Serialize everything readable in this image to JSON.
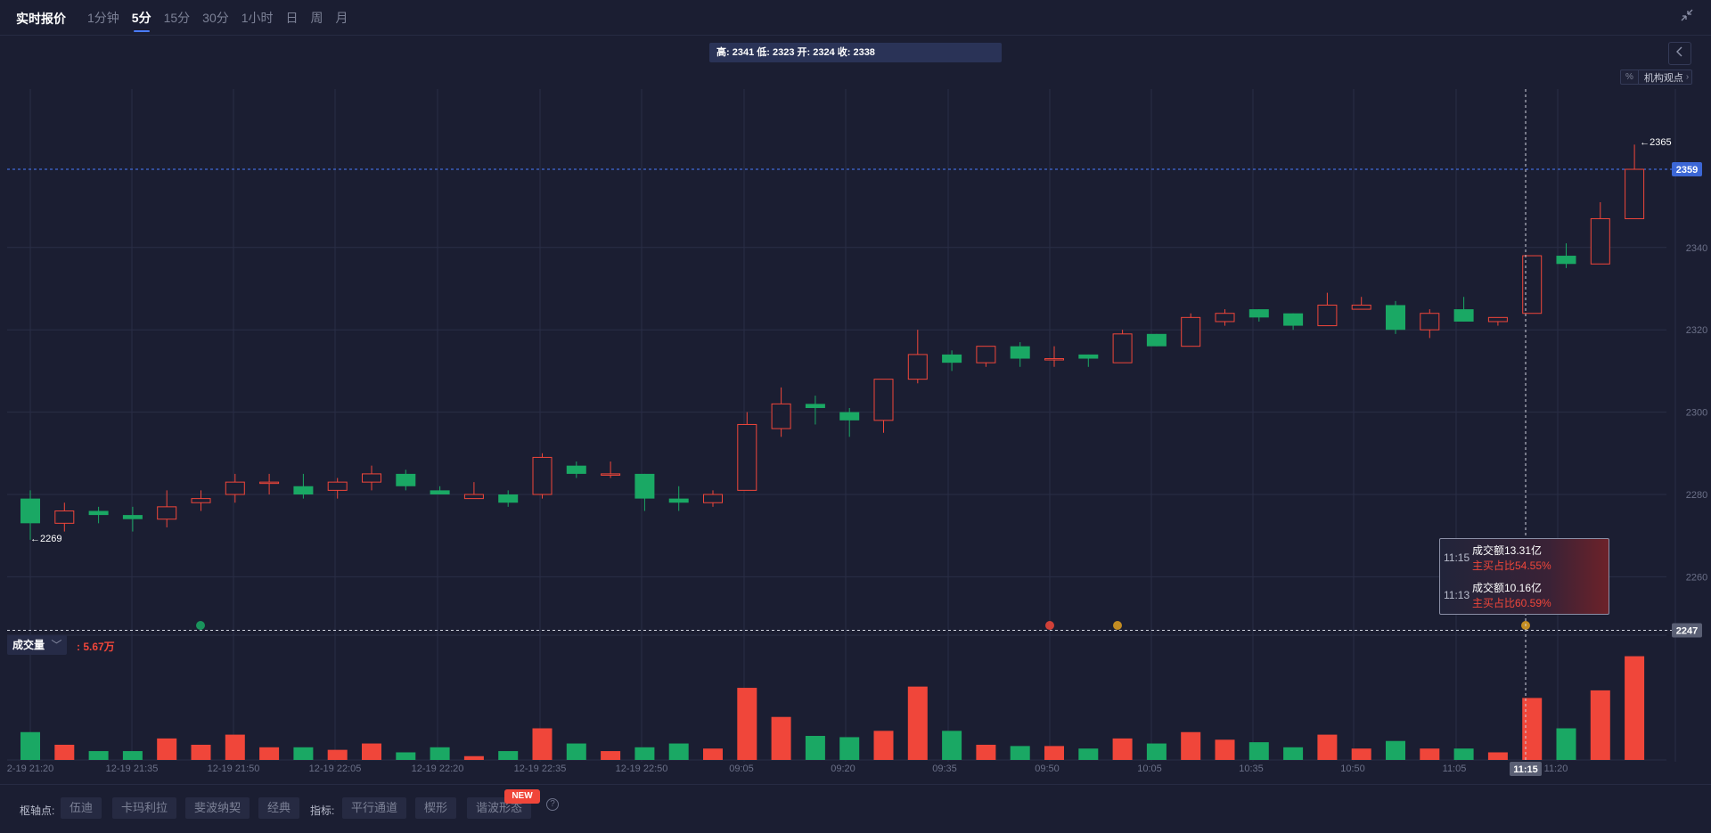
{
  "header": {
    "title": "实时报价",
    "periods": [
      "1分钟",
      "5分",
      "15分",
      "30分",
      "1小时",
      "日",
      "周",
      "月"
    ],
    "active_period": "5分"
  },
  "ohlc_info": "高: 2341 低: 2323 开: 2324 收: 2338",
  "inst_view": {
    "pct": "%",
    "label": "机构观点"
  },
  "price_axis": {
    "ticks": [
      "2340",
      "2320",
      "2300",
      "2280",
      "2260"
    ],
    "current_price": "2359",
    "crosshair_price": "2247",
    "max_label": "2365",
    "min_label": "2269"
  },
  "tooltip": {
    "rows": [
      {
        "time": "11:15",
        "amount": "成交额13.31亿",
        "ratio": "主买占比54.55%"
      },
      {
        "time": "11:13",
        "amount": "成交额10.16亿",
        "ratio": "主买占比60.59%"
      }
    ]
  },
  "volume": {
    "label": "成交量",
    "value": ": 5.67万"
  },
  "time_axis": {
    "labels": [
      "2-19 21:20",
      "12-19 21:35",
      "12-19 21:50",
      "12-19 22:05",
      "12-19 22:20",
      "12-19 22:35",
      "12-19 22:50",
      "09:05",
      "09:20",
      "09:35",
      "09:50",
      "10:05",
      "10:35",
      "10:50",
      "11:05",
      "11:20"
    ],
    "crosshair_time": "11:15"
  },
  "bottom_bar": {
    "pivot_label": "枢轴点:",
    "pivot_buttons": [
      "伍迪",
      "卡玛利拉",
      "斐波纳契",
      "经典"
    ],
    "indicator_label": "指标:",
    "indicator_buttons": [
      "平行通道",
      "楔形",
      "谐波形态"
    ],
    "new_badge": "NEW",
    "help": "?"
  },
  "colors": {
    "up": "#f0463a",
    "down": "#1aa864",
    "background": "#1b1e32",
    "accent": "#4a7cff"
  },
  "chart_data": {
    "type": "candlestick",
    "y_ticks": [
      2340,
      2320,
      2300,
      2280,
      2260
    ],
    "candles": [
      {
        "o": 2279,
        "h": 2281,
        "l": 2269,
        "c": 2273
      },
      {
        "o": 2273,
        "h": 2278,
        "l": 2271,
        "c": 2276
      },
      {
        "o": 2276,
        "h": 2277,
        "l": 2273,
        "c": 2275
      },
      {
        "o": 2275,
        "h": 2277,
        "l": 2271,
        "c": 2274
      },
      {
        "o": 2274,
        "h": 2281,
        "l": 2272,
        "c": 2277
      },
      {
        "o": 2278,
        "h": 2281,
        "l": 2276,
        "c": 2279
      },
      {
        "o": 2280,
        "h": 2285,
        "l": 2278,
        "c": 2283
      },
      {
        "o": 2283,
        "h": 2285,
        "l": 2280,
        "c": 2283
      },
      {
        "o": 2282,
        "h": 2285,
        "l": 2279,
        "c": 2280
      },
      {
        "o": 2281,
        "h": 2284,
        "l": 2279,
        "c": 2283
      },
      {
        "o": 2283,
        "h": 2287,
        "l": 2281,
        "c": 2285
      },
      {
        "o": 2285,
        "h": 2286,
        "l": 2281,
        "c": 2282
      },
      {
        "o": 2281,
        "h": 2282,
        "l": 2280,
        "c": 2280
      },
      {
        "o": 2279,
        "h": 2283,
        "l": 2279,
        "c": 2280
      },
      {
        "o": 2280,
        "h": 2281,
        "l": 2277,
        "c": 2278
      },
      {
        "o": 2280,
        "h": 2290,
        "l": 2279,
        "c": 2289
      },
      {
        "o": 2287,
        "h": 2288,
        "l": 2284,
        "c": 2285
      },
      {
        "o": 2285,
        "h": 2288,
        "l": 2284,
        "c": 2285
      },
      {
        "o": 2285,
        "h": 2285,
        "l": 2276,
        "c": 2279
      },
      {
        "o": 2279,
        "h": 2282,
        "l": 2276,
        "c": 2278
      },
      {
        "o": 2278,
        "h": 2281,
        "l": 2277,
        "c": 2280
      },
      {
        "o": 2281,
        "h": 2300,
        "l": 2281,
        "c": 2297
      },
      {
        "o": 2296,
        "h": 2306,
        "l": 2294,
        "c": 2302
      },
      {
        "o": 2302,
        "h": 2304,
        "l": 2297,
        "c": 2301
      },
      {
        "o": 2300,
        "h": 2301,
        "l": 2294,
        "c": 2298
      },
      {
        "o": 2298,
        "h": 2308,
        "l": 2295,
        "c": 2308
      },
      {
        "o": 2308,
        "h": 2320,
        "l": 2307,
        "c": 2314
      },
      {
        "o": 2314,
        "h": 2315,
        "l": 2310,
        "c": 2312
      },
      {
        "o": 2312,
        "h": 2316,
        "l": 2311,
        "c": 2316
      },
      {
        "o": 2316,
        "h": 2317,
        "l": 2311,
        "c": 2313
      },
      {
        "o": 2313,
        "h": 2316,
        "l": 2311,
        "c": 2313
      },
      {
        "o": 2314,
        "h": 2314,
        "l": 2311,
        "c": 2313
      },
      {
        "o": 2312,
        "h": 2320,
        "l": 2312,
        "c": 2319
      },
      {
        "o": 2319,
        "h": 2319,
        "l": 2316,
        "c": 2316
      },
      {
        "o": 2316,
        "h": 2324,
        "l": 2316,
        "c": 2323
      },
      {
        "o": 2322,
        "h": 2325,
        "l": 2321,
        "c": 2324
      },
      {
        "o": 2325,
        "h": 2325,
        "l": 2322,
        "c": 2323
      },
      {
        "o": 2324,
        "h": 2324,
        "l": 2320,
        "c": 2321
      },
      {
        "o": 2321,
        "h": 2329,
        "l": 2321,
        "c": 2326
      },
      {
        "o": 2325,
        "h": 2328,
        "l": 2325,
        "c": 2326
      },
      {
        "o": 2326,
        "h": 2327,
        "l": 2319,
        "c": 2320
      },
      {
        "o": 2320,
        "h": 2325,
        "l": 2318,
        "c": 2324
      },
      {
        "o": 2325,
        "h": 2328,
        "l": 2322,
        "c": 2322
      },
      {
        "o": 2322,
        "h": 2323,
        "l": 2321,
        "c": 2323
      },
      {
        "o": 2324,
        "h": 2338,
        "l": 2324,
        "c": 2338
      },
      {
        "o": 2338,
        "h": 2341,
        "l": 2335,
        "c": 2336
      },
      {
        "o": 2336,
        "h": 2351,
        "l": 2336,
        "c": 2347
      },
      {
        "o": 2347,
        "h": 2365,
        "l": 2347,
        "c": 2359
      }
    ],
    "volumes": [
      22,
      12,
      7,
      7,
      17,
      12,
      20,
      10,
      10,
      8,
      13,
      6,
      10,
      3,
      7,
      25,
      13,
      7,
      10,
      13,
      9,
      57,
      34,
      19,
      18,
      23,
      58,
      23,
      12,
      11,
      11,
      9,
      17,
      13,
      22,
      16,
      14,
      10,
      20,
      9,
      15,
      9,
      9,
      6,
      49,
      25,
      55,
      82
    ]
  }
}
